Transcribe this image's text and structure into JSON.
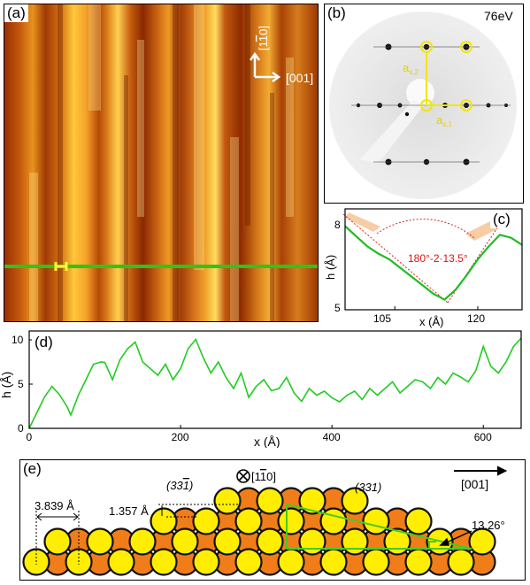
{
  "panel_a": {
    "label": "(a)",
    "dir_up": "[1",
    "dir_up_bar": "1",
    "dir_up_end": "0]",
    "dir_right": "[001]",
    "colors": {
      "line": "#2fc41a",
      "marker": "#ffff33"
    }
  },
  "panel_b": {
    "label": "(b)",
    "energy": "76eV",
    "vec1": "a",
    "vec1_sub": "s,2",
    "vec2": "a",
    "vec2_sub": "s,1"
  },
  "chart_data": [
    {
      "panel": "(c)",
      "type": "line",
      "xlabel": "x (Å)",
      "ylabel": "h (Å)",
      "xlim": [
        96,
        128
      ],
      "ylim": [
        5,
        8.5
      ],
      "xticks": [
        "105",
        "120"
      ],
      "yticks": [
        "5",
        "8"
      ],
      "annotation": "180°-2·13.5°",
      "series": [
        {
          "color": "#22bb22",
          "x": [
            96,
            98,
            100,
            102,
            104,
            106,
            108,
            110,
            112,
            114,
            116,
            118,
            120,
            122,
            124,
            126,
            128
          ],
          "y": [
            7.9,
            7.55,
            7.2,
            6.95,
            6.75,
            6.45,
            6.15,
            5.85,
            5.55,
            5.35,
            5.7,
            6.2,
            6.75,
            7.2,
            7.6,
            7.5,
            7.25
          ]
        }
      ]
    },
    {
      "panel": "(d)",
      "type": "line",
      "xlabel": "x (Å)",
      "ylabel": "h (Å)",
      "xlim": [
        0,
        650
      ],
      "ylim": [
        0,
        11
      ],
      "xticks": [
        "0",
        "200",
        "400",
        "600"
      ],
      "yticks": [
        "0",
        "5",
        "10"
      ],
      "series": [
        {
          "color": "#22cc22",
          "x": [
            0,
            10,
            20,
            30,
            40,
            50,
            55,
            65,
            75,
            85,
            95,
            100,
            110,
            120,
            130,
            140,
            150,
            160,
            170,
            180,
            190,
            200,
            210,
            220,
            230,
            240,
            250,
            260,
            270,
            280,
            290,
            300,
            310,
            320,
            330,
            340,
            350,
            360,
            370,
            380,
            390,
            400,
            410,
            420,
            430,
            440,
            450,
            460,
            470,
            480,
            490,
            500,
            510,
            520,
            530,
            540,
            550,
            560,
            570,
            580,
            590,
            600,
            610,
            620,
            630,
            640,
            650
          ],
          "y": [
            0,
            1.5,
            3.5,
            4.5,
            3.8,
            2.2,
            1.5,
            3.5,
            5.5,
            7,
            7.5,
            7.2,
            5.5,
            7.5,
            9,
            9.5,
            7.5,
            6.5,
            6,
            7,
            5.5,
            6.5,
            9,
            9.8,
            8,
            6,
            7.5,
            5.5,
            4.5,
            6,
            3.5,
            4.5,
            5.5,
            4,
            4.5,
            5.5,
            4,
            2.8,
            4.5,
            3.5,
            4.2,
            3.2,
            3,
            3.5,
            4.2,
            3,
            4.5,
            3.5,
            4.5,
            5,
            4,
            4.5,
            5.5,
            5,
            4.5,
            5.5,
            5,
            6,
            5.8,
            5,
            6.5,
            9,
            7,
            6,
            7.5,
            9,
            10.2
          ]
        }
      ]
    }
  ],
  "panel_e": {
    "label": "(e)",
    "axis_label": "[001]",
    "view_dir": "[1",
    "view_dir_bar": "1",
    "view_dir_end": "0]",
    "facet_left": "(33",
    "facet_left_bar": "1",
    "facet_left_end": ")",
    "facet_right": "(331)",
    "dim_horizontal": "3.839 Å",
    "dim_vertical": "1.357 Å",
    "angle": "13.26°",
    "colors": {
      "atom_top": "#ffee00",
      "atom_sub": "#f07d1a",
      "outline": "#111111",
      "facet": "#44cc22"
    }
  }
}
